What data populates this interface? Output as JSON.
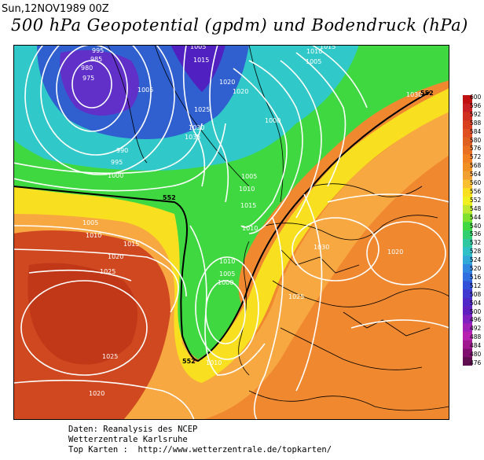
{
  "header": {
    "date": "Sun,12NOV1989 00Z",
    "title": "500 hPa Geopotential (gpdm) und Bodendruck (hPa)"
  },
  "map": {
    "field": "500 hPa Geopotential",
    "colors": {
      "deep_red": "#c03818",
      "red": "#e05828",
      "orange": "#f08830",
      "light_orange": "#f8a840",
      "yellow": "#f8e020",
      "yellow_green": "#c0e030",
      "green": "#40d840",
      "cyan": "#30c8c8",
      "blue": "#3060d0",
      "purple": "#5020c0",
      "isobar": "#ffffff",
      "coast": "#000000"
    },
    "isobar_labels": [
      "995",
      "985",
      "980",
      "975",
      "1005",
      "990",
      "995",
      "1000",
      "1005",
      "1015",
      "1025",
      "1030",
      "1035",
      "1020",
      "1020",
      "1010",
      "1005",
      "1015",
      "1000",
      "1005",
      "1010",
      "1015",
      "1030",
      "1010",
      "1005",
      "1010",
      "1015",
      "1020",
      "1025",
      "1000",
      "1010",
      "1005",
      "1030",
      "1025",
      "1020",
      "1025",
      "1020",
      "1010"
    ],
    "contour_552_label": "552"
  },
  "legend": {
    "scale_values": [
      "600",
      "596",
      "592",
      "588",
      "584",
      "580",
      "576",
      "572",
      "568",
      "564",
      "560",
      "556",
      "552",
      "548",
      "544",
      "540",
      "536",
      "532",
      "528",
      "524",
      "520",
      "516",
      "512",
      "508",
      "504",
      "500",
      "496",
      "492",
      "488",
      "484",
      "480",
      "476"
    ],
    "scale_colors": [
      "#c01010",
      "#c82020",
      "#d03020",
      "#d84020",
      "#e05020",
      "#e06020",
      "#e87020",
      "#f08020",
      "#f09020",
      "#f0a030",
      "#f8c030",
      "#f8e020",
      "#f0f020",
      "#c0e830",
      "#80e030",
      "#40d840",
      "#30d070",
      "#30c8a0",
      "#30c0c8",
      "#30a8d8",
      "#3088e0",
      "#3070e0",
      "#3050d8",
      "#4038d0",
      "#5028c8",
      "#6020c0",
      "#8020c0",
      "#a020b8",
      "#b820b0",
      "#a01890",
      "#801070",
      "#601050"
    ]
  },
  "footer": {
    "line1": "Daten: Reanalysis des NCEP",
    "line2": "Wetterzentrale Karlsruhe",
    "line3": "Top Karten :  http://www.wetterzentrale.de/topkarten/"
  }
}
